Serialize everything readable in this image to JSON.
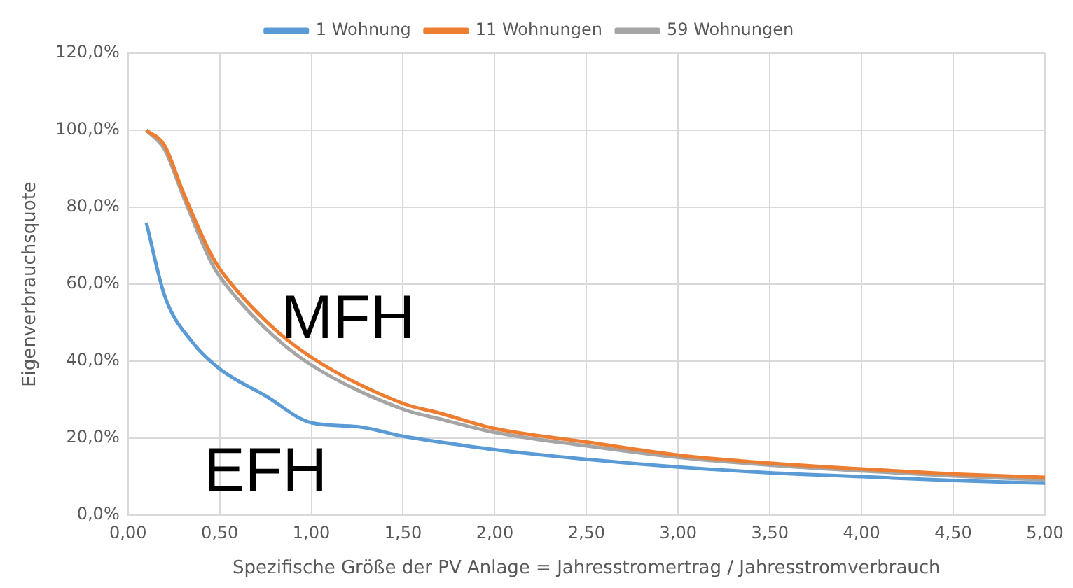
{
  "chart_data": {
    "type": "line",
    "xlabel": "Spezifische Größe der PV Anlage = Jahresstromertrag / Jahresstromverbrauch",
    "ylabel": "Eigenverbrauchsquote",
    "xlim": [
      0,
      5
    ],
    "xticks": [
      {
        "value": 0,
        "label": "0,00"
      },
      {
        "value": 0.5,
        "label": "0,50"
      },
      {
        "value": 1,
        "label": "1,00"
      },
      {
        "value": 1.5,
        "label": "1,50"
      },
      {
        "value": 2,
        "label": "2,00"
      },
      {
        "value": 2.5,
        "label": "2,50"
      },
      {
        "value": 3,
        "label": "3,00"
      },
      {
        "value": 3.5,
        "label": "3,50"
      },
      {
        "value": 4,
        "label": "4,00"
      },
      {
        "value": 4.5,
        "label": "4,50"
      },
      {
        "value": 5,
        "label": "5,00"
      }
    ],
    "ylim": [
      0,
      120
    ],
    "yticks": [
      {
        "value": 0,
        "label": "0,0%"
      },
      {
        "value": 20,
        "label": "20,0%"
      },
      {
        "value": 40,
        "label": "40,0%"
      },
      {
        "value": 60,
        "label": "60,0%"
      },
      {
        "value": 80,
        "label": "80,0%"
      },
      {
        "value": 100,
        "label": "100,0%"
      },
      {
        "value": 120,
        "label": "120,0%"
      }
    ],
    "grid": true,
    "legend": "top",
    "marker": "none",
    "line_style": "solid",
    "series": [
      {
        "name": "1 Wohnung",
        "color": "#5b9bd5",
        "x": [
          0.1,
          0.2,
          0.35,
          0.5,
          0.75,
          1.0,
          1.25,
          1.5,
          1.7,
          2.0,
          2.5,
          3.0,
          3.5,
          4.0,
          4.5,
          5.0
        ],
        "values": [
          76,
          57,
          45,
          38,
          31,
          24,
          23,
          20.5,
          19,
          17,
          14.5,
          12.5,
          11,
          10,
          9,
          8.3
        ]
      },
      {
        "name": "11 Wohnungen",
        "color": "#ed7d31",
        "x": [
          0.1,
          0.2,
          0.3,
          0.45,
          0.5,
          0.75,
          1.0,
          1.5,
          1.7,
          2.0,
          2.5,
          3.0,
          3.5,
          4.0,
          4.5,
          5.0
        ],
        "values": [
          100,
          96,
          84,
          68,
          64,
          50.5,
          41,
          29,
          26.5,
          22.5,
          19,
          15.6,
          13.5,
          12,
          10.7,
          9.8
        ]
      },
      {
        "name": "59 Wohnungen",
        "color": "#a5a5a5",
        "x": [
          0.1,
          0.2,
          0.3,
          0.45,
          0.5,
          0.75,
          1.0,
          1.5,
          1.7,
          2.0,
          2.5,
          3.0,
          3.5,
          4.0,
          4.5,
          5.0
        ],
        "values": [
          100,
          95,
          83,
          66,
          62,
          48.5,
          39,
          27.5,
          25,
          21.5,
          18,
          15,
          13,
          11.5,
          10.2,
          9.2
        ]
      }
    ],
    "annotations": [
      "MFH",
      "EFH"
    ]
  }
}
